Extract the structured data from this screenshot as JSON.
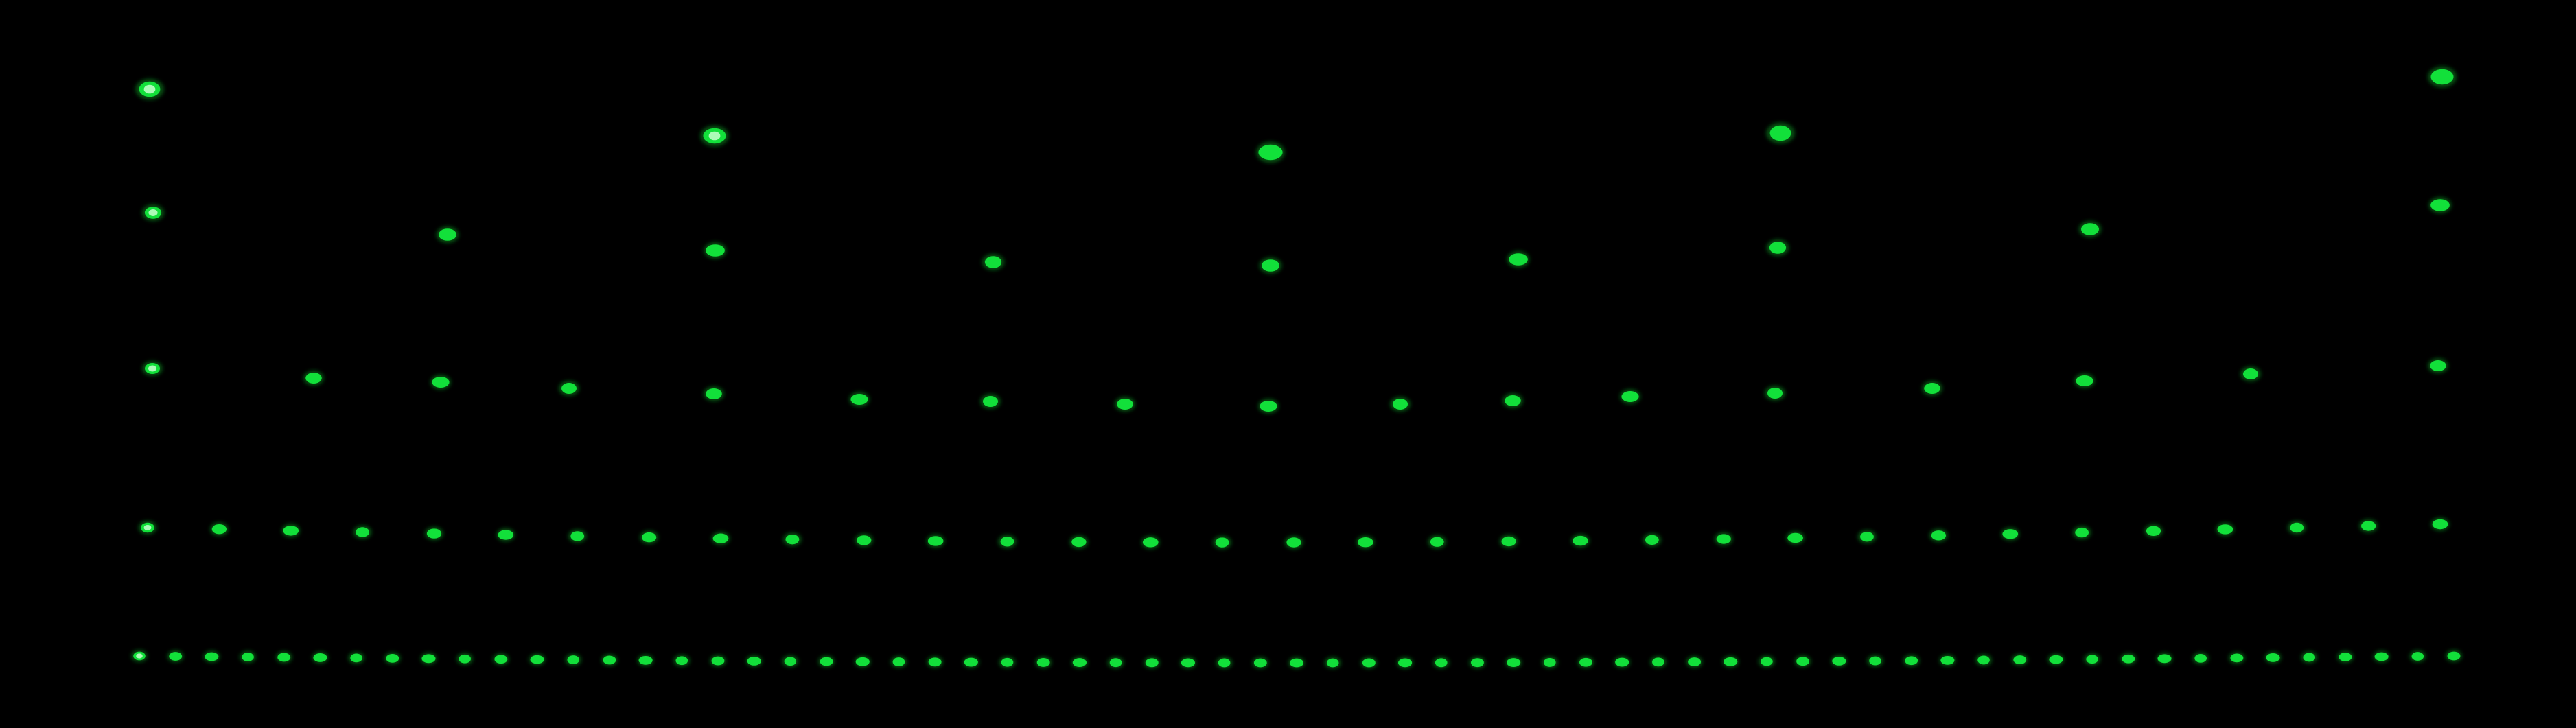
{
  "image": {
    "background_color": "#000000",
    "spot_color": "#12e03a",
    "spot_highlight_color": "#c8ffcf",
    "spot_glow_color": "#0a8f24",
    "rows": [
      {
        "name": "row-1",
        "spot_count": 5
      },
      {
        "name": "row-2",
        "spot_count": 9
      },
      {
        "name": "row-3",
        "spot_count": 17
      },
      {
        "name": "row-4",
        "spot_count": 33
      },
      {
        "name": "row-5",
        "spot_count": 65
      }
    ]
  }
}
